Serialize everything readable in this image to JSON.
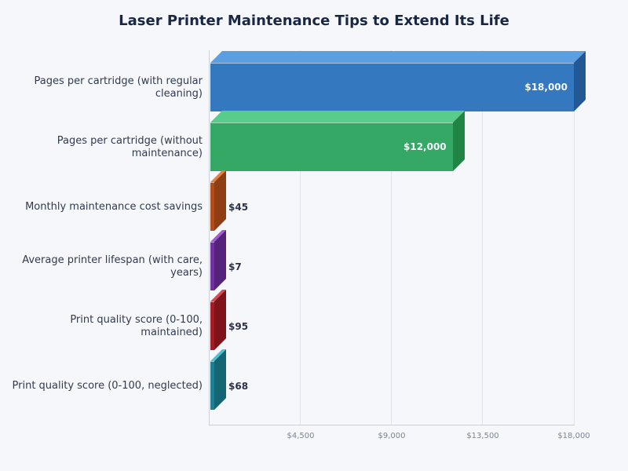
{
  "title": "Laser Printer Maintenance Tips to Extend Its Life",
  "x_ticks": [
    "$4,500",
    "$9,000",
    "$13,500",
    "$18,000"
  ],
  "categories": [
    {
      "label": "Pages per cartridge (with regular cleaning)",
      "label_lines": [
        "Pages per cartridge (with regular",
        "cleaning)"
      ],
      "value": 18000,
      "value_label": "$18,000",
      "color": "#3478c0",
      "top_color": "#5b9fe0",
      "side_color": "#225895"
    },
    {
      "label": "Pages per cartridge (without maintenance)",
      "label_lines": [
        "Pages per cartridge (without",
        "maintenance)"
      ],
      "value": 12000,
      "value_label": "$12,000",
      "color": "#36a866",
      "top_color": "#58cc8a",
      "side_color": "#208445"
    },
    {
      "label": "Monthly maintenance cost savings",
      "label_lines": [
        "Monthly maintenance cost savings"
      ],
      "value": 45,
      "value_label": "$45",
      "color": "#b04e1b",
      "top_color": "#e57f3c",
      "side_color": "#8f3d12"
    },
    {
      "label": "Average printer lifespan (with care, years)",
      "label_lines": [
        "Average printer lifespan (with care,",
        "years)"
      ],
      "value": 7,
      "value_label": "$7",
      "color": "#7030a0",
      "top_color": "#a45ad4",
      "side_color": "#55237b"
    },
    {
      "label": "Print quality score (0-100, maintained)",
      "label_lines": [
        "Print quality score (0-100,",
        "maintained)"
      ],
      "value": 95,
      "value_label": "$95",
      "color": "#a11c24",
      "top_color": "#d84a52",
      "side_color": "#7e131a"
    },
    {
      "label": "Print quality score (0-100, neglected)",
      "label_lines": [
        "Print quality score (0-100, neglected)"
      ],
      "value": 68,
      "value_label": "$68",
      "color": "#1e7f90",
      "top_color": "#4cc2d2",
      "side_color": "#156675"
    }
  ],
  "chart_data": {
    "type": "bar",
    "orientation": "horizontal",
    "title": "Laser Printer Maintenance Tips to Extend Its Life",
    "categories": [
      "Pages per cartridge (with regular cleaning)",
      "Pages per cartridge (without maintenance)",
      "Monthly maintenance cost savings",
      "Average printer lifespan (with care, years)",
      "Print quality score (0-100, maintained)",
      "Print quality score (0-100, neglected)"
    ],
    "values": [
      18000,
      12000,
      45,
      7,
      95,
      68
    ],
    "value_labels": [
      "$18,000",
      "$12,000",
      "$45",
      "$7",
      "$95",
      "$68"
    ],
    "colors": [
      "#3478c0",
      "#36a866",
      "#b04e1b",
      "#7030a0",
      "#a11c24",
      "#1e7f90"
    ],
    "xlabel": "",
    "ylabel": "",
    "xlim": [
      0,
      18000
    ],
    "x_ticks": [
      4500,
      9000,
      13500,
      18000
    ],
    "x_tick_labels": [
      "$4,500",
      "$9,000",
      "$13,500",
      "$18,000"
    ],
    "grid": true,
    "legend": null,
    "style": "3d-bars"
  }
}
